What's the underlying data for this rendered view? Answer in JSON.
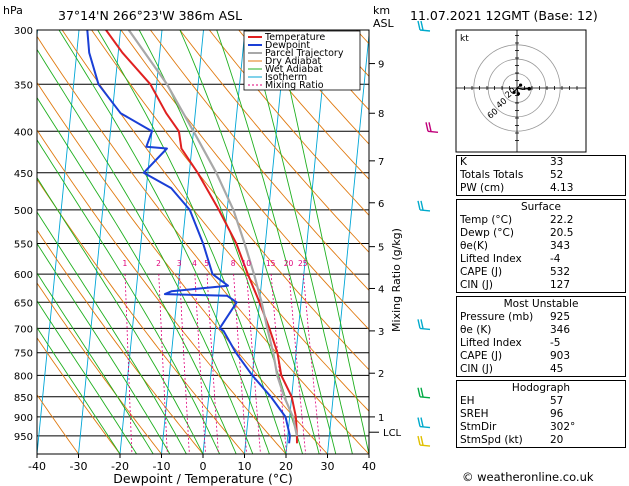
{
  "header": {
    "location": "37°14'N  266°23'W  386m  ASL",
    "datetime": "11.07.2021  12GMT  (Base: 12)",
    "hpa_unit": "hPa",
    "km_unit": "km",
    "asl_unit": "ASL"
  },
  "chart_data": {
    "type": "line",
    "xlabel": "Dewpoint / Temperature (°C)",
    "ylabel_right": "Mixing Ratio (g/kg)",
    "x_ticks": [
      -40,
      -30,
      -20,
      -10,
      0,
      10,
      20,
      30,
      40
    ],
    "pressure_levels": [
      300,
      350,
      400,
      450,
      500,
      550,
      600,
      650,
      700,
      750,
      800,
      850,
      900,
      950
    ],
    "xlim": [
      -40,
      40
    ],
    "ylim_hpa": [
      1000,
      300
    ],
    "height_km": [
      {
        "km": "1",
        "p": 900
      },
      {
        "km": "2",
        "p": 795
      },
      {
        "km": "3",
        "p": 705
      },
      {
        "km": "4",
        "p": 625
      },
      {
        "km": "5",
        "p": 555
      },
      {
        "km": "6",
        "p": 490
      },
      {
        "km": "7",
        "p": 435
      },
      {
        "km": "8",
        "p": 380
      },
      {
        "km": "9",
        "p": 330
      }
    ],
    "lcl_label": "LCL",
    "lcl_p": 940,
    "mixing_ratio_labels": [
      "1",
      "2",
      "3",
      "4",
      "5",
      "8",
      "10",
      "15",
      "20",
      "25"
    ],
    "mixing_ratio_values": [
      1,
      2,
      3,
      4,
      5,
      8,
      10,
      15,
      20,
      25
    ],
    "mixing_ratio_label_p": 590,
    "legend": [
      "Temperature",
      "Dewpoint",
      "Parcel Trajectory",
      "Dry Adiabat",
      "Wet Adiabat",
      "Isotherm",
      "Mixing Ratio"
    ],
    "series": [
      {
        "name": "Temperature",
        "color": "#e02020",
        "points": [
          [
            22.4,
            970
          ],
          [
            22.2,
            950
          ],
          [
            21.5,
            900
          ],
          [
            20.0,
            850
          ],
          [
            17.0,
            800
          ],
          [
            15.5,
            750
          ],
          [
            13.0,
            700
          ],
          [
            10.0,
            650
          ],
          [
            6.5,
            600
          ],
          [
            3.0,
            550
          ],
          [
            -2.0,
            500
          ],
          [
            -8.0,
            450
          ],
          [
            -12.5,
            420
          ],
          [
            -13.5,
            400
          ],
          [
            -17.0,
            380
          ],
          [
            -21.5,
            350
          ],
          [
            -29.0,
            320
          ],
          [
            -33.5,
            300
          ]
        ]
      },
      {
        "name": "Dewpoint",
        "color": "#1a3fd6",
        "points": [
          [
            20.5,
            970
          ],
          [
            20.5,
            950
          ],
          [
            19.0,
            900
          ],
          [
            15.0,
            850
          ],
          [
            10.0,
            800
          ],
          [
            5.5,
            750
          ],
          [
            2.0,
            705
          ],
          [
            1.0,
            700
          ],
          [
            4.5,
            650
          ],
          [
            2.0,
            638
          ],
          [
            -13.0,
            635
          ],
          [
            -11.5,
            630
          ],
          [
            2.0,
            620
          ],
          [
            -2.0,
            600
          ],
          [
            -5.0,
            550
          ],
          [
            -9.0,
            500
          ],
          [
            -14.0,
            470
          ],
          [
            -21.0,
            450
          ],
          [
            -16.0,
            420
          ],
          [
            -21.0,
            418
          ],
          [
            -20.0,
            400
          ],
          [
            -28.0,
            380
          ],
          [
            -34.0,
            350
          ],
          [
            -37.0,
            320
          ],
          [
            -38.0,
            300
          ]
        ]
      },
      {
        "name": "Parcel Trajectory",
        "color": "#a8a8a8",
        "points": [
          [
            22.2,
            950
          ],
          [
            20.8,
            900
          ],
          [
            18.2,
            850
          ],
          [
            16.0,
            800
          ],
          [
            14.5,
            750
          ],
          [
            12.5,
            700
          ],
          [
            10.5,
            650
          ],
          [
            8.0,
            600
          ],
          [
            5.0,
            550
          ],
          [
            1.5,
            500
          ],
          [
            -3.5,
            450
          ],
          [
            -10.0,
            400
          ],
          [
            -17.5,
            350
          ],
          [
            -28.0,
            300
          ]
        ]
      }
    ],
    "wind_barbs": [
      {
        "p": 400,
        "color": "#c0007a"
      },
      {
        "p": 500,
        "color": "#00aacc"
      },
      {
        "p": 700,
        "color": "#00aacc"
      },
      {
        "p": 850,
        "color": "#00aa44"
      },
      {
        "p": 925,
        "color": "#00aacc"
      },
      {
        "p": 975,
        "color": "#e0c000"
      },
      {
        "p": 300,
        "color": "#00aacc"
      }
    ]
  },
  "hodograph": {
    "unit_label": "kt",
    "ring_labels": [
      "20",
      "40",
      "60"
    ],
    "ring_knots": [
      20,
      40,
      60
    ],
    "points_kt": [
      [
        0,
        0
      ],
      [
        8,
        -2
      ],
      [
        14,
        -1
      ],
      [
        17,
        -1
      ],
      [
        5,
        4
      ],
      [
        -4,
        -6
      ],
      [
        2,
        -8
      ]
    ]
  },
  "indices": [
    {
      "label": "K",
      "value": "33"
    },
    {
      "label": "Totals Totals",
      "value": "52"
    },
    {
      "label": "PW (cm)",
      "value": "4.13"
    }
  ],
  "surface": {
    "title": "Surface",
    "rows": [
      {
        "label": "Temp (°C)",
        "value": "22.2"
      },
      {
        "label": "Dewp (°C)",
        "value": "20.5"
      },
      {
        "label": "θe(K)",
        "value": "343"
      },
      {
        "label": "Lifted Index",
        "value": "-4"
      },
      {
        "label": "CAPE (J)",
        "value": "532"
      },
      {
        "label": "CIN (J)",
        "value": "127"
      }
    ]
  },
  "most_unstable": {
    "title": "Most Unstable",
    "rows": [
      {
        "label": "Pressure (mb)",
        "value": "925"
      },
      {
        "label": "θe (K)",
        "value": "346"
      },
      {
        "label": "Lifted Index",
        "value": "-5"
      },
      {
        "label": "CAPE (J)",
        "value": "903"
      },
      {
        "label": "CIN (J)",
        "value": "45"
      }
    ]
  },
  "hodograph_box": {
    "title": "Hodograph",
    "rows": [
      {
        "label": "EH",
        "value": "57"
      },
      {
        "label": "SREH",
        "value": "96"
      },
      {
        "label": "StmDir",
        "value": "302°"
      },
      {
        "label": "StmSpd (kt)",
        "value": "20"
      }
    ]
  },
  "footer": {
    "credit": "© weatheronline.co.uk"
  }
}
